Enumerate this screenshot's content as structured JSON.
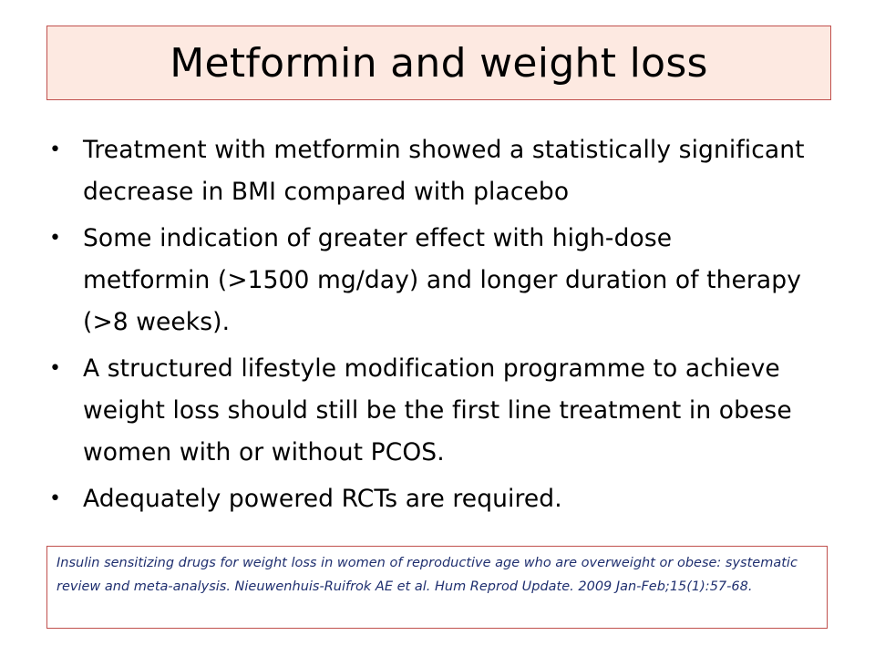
{
  "slide": {
    "title": "Metformin and weight loss",
    "bullets": [
      "Treatment with metformin showed a statistically significant decrease in BMI compared with placebo",
      "Some indication of greater effect with high-dose metformin (>1500 mg/day) and longer duration of therapy (>8 weeks).",
      "A structured lifestyle modification programme to achieve weight loss should still be the first line treatment in obese women with or without PCOS.",
      "Adequately powered RCTs are required."
    ],
    "bullet_symbol": "•",
    "reference": "Insulin sensitizing drugs for weight loss in women of reproductive age who are overweight or obese: systematic review and meta-analysis. Nieuwenhuis-Ruifrok AE et al. Hum Reprod Update. 2009 Jan-Feb;15(1):57-68."
  },
  "colors": {
    "title_background": "#fde9e1",
    "box_border": "#c0504d",
    "reference_text": "#1f2f6f"
  }
}
